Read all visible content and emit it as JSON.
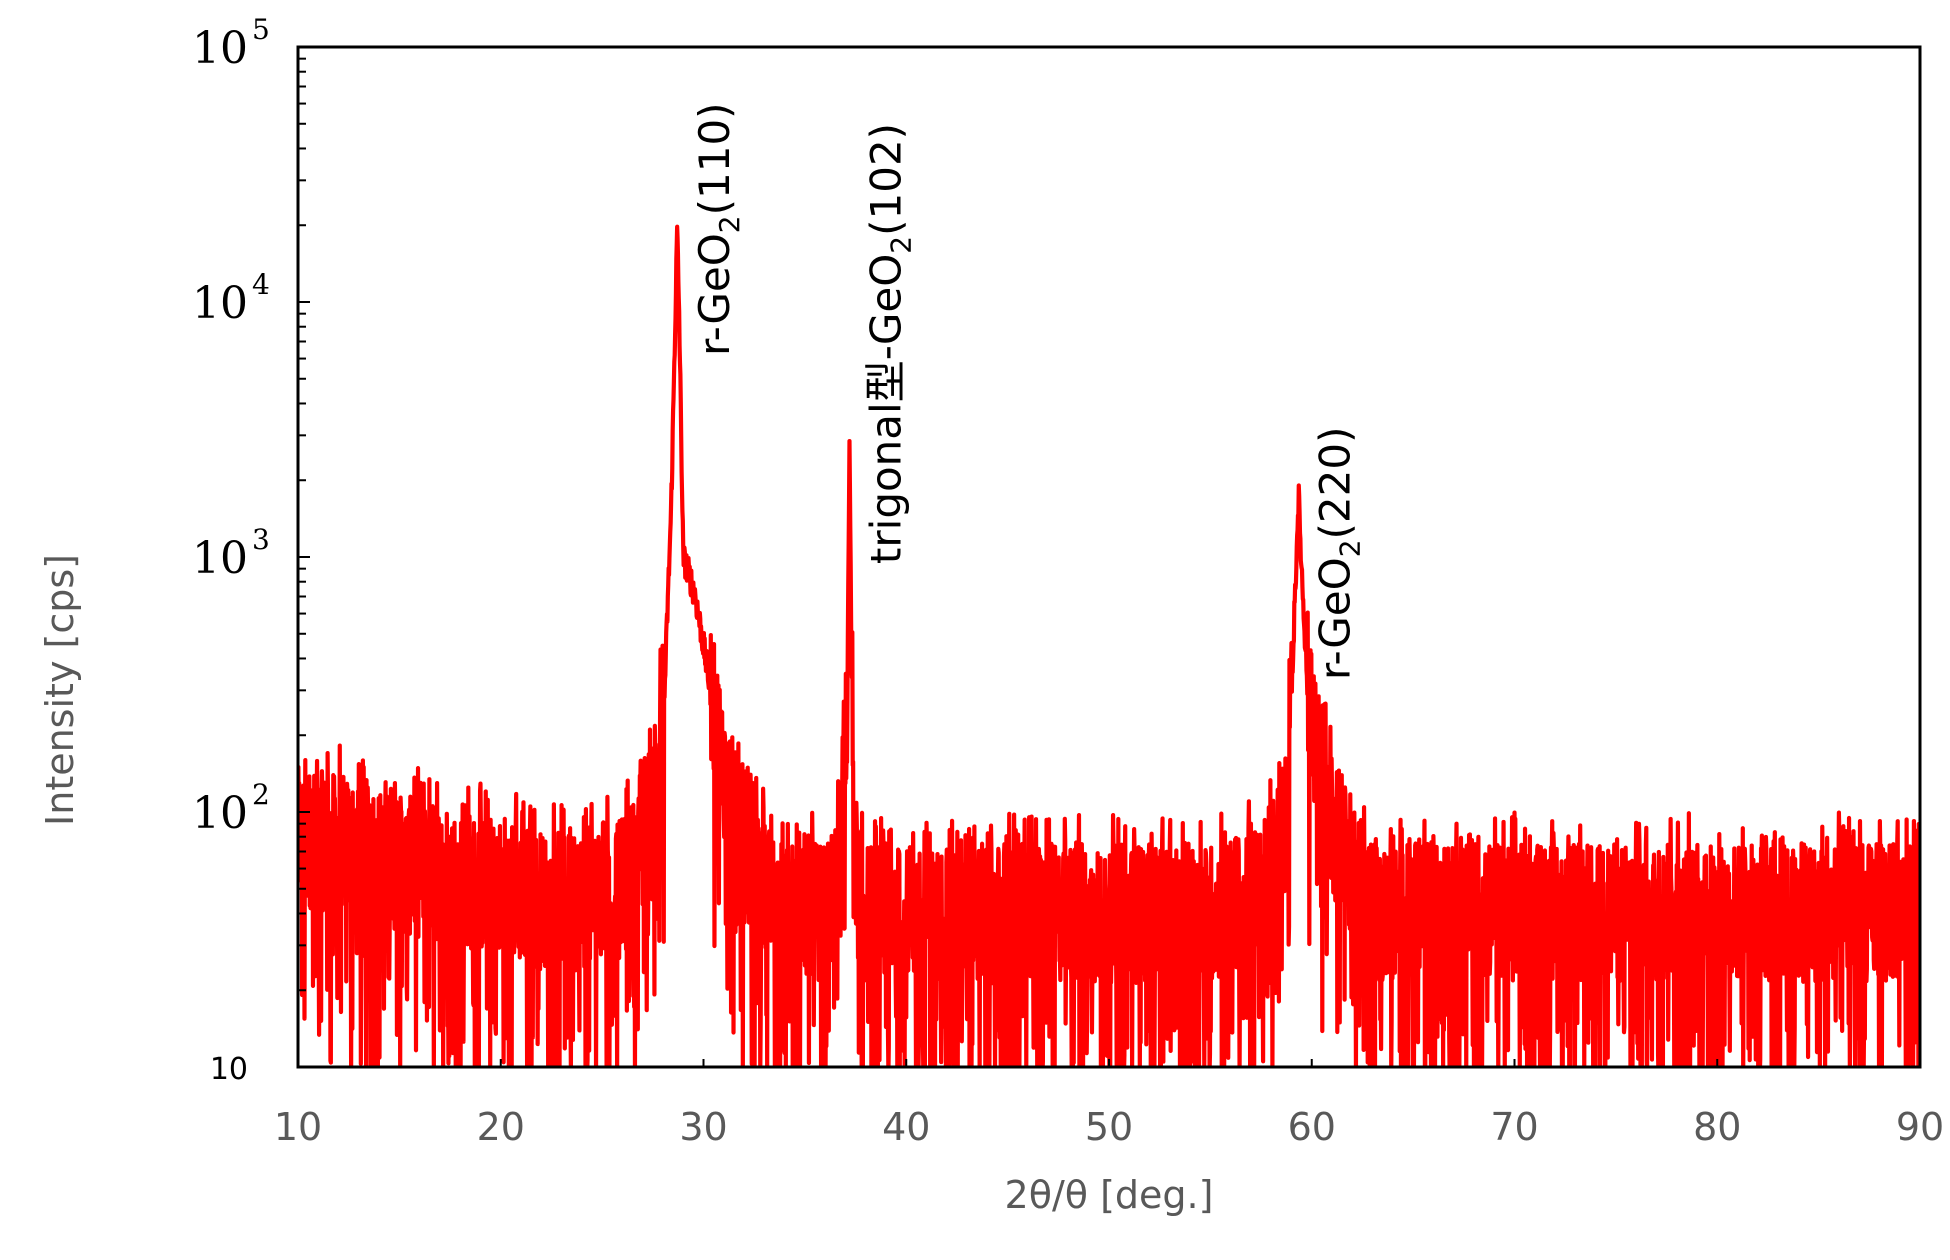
{
  "chart_data": {
    "type": "line",
    "title": "",
    "xlabel": "2θ/θ [deg.]",
    "ylabel": "Intensity [cps]",
    "xlim": [
      10,
      90
    ],
    "ylim": [
      10,
      100000
    ],
    "yscale": "log",
    "grid": false,
    "legend": "none",
    "line_color": "#ff0000",
    "x_ticks": [
      10,
      20,
      30,
      40,
      50,
      60,
      70,
      80,
      90
    ],
    "y_ticks": [
      {
        "value": 10,
        "label": "10",
        "exp": ""
      },
      {
        "value": 100,
        "label": "10",
        "exp": "2"
      },
      {
        "value": 1000,
        "label": "10",
        "exp": "3"
      },
      {
        "value": 10000,
        "label": "10",
        "exp": "4"
      },
      {
        "value": 100000,
        "label": "10",
        "exp": "5"
      }
    ],
    "series": [
      {
        "x": [
          10.0,
          12.0,
          14.0,
          16.0,
          18.0,
          20.0,
          22.0,
          24.0,
          26.0,
          27.0,
          27.5,
          28.0,
          28.4,
          28.6,
          28.7,
          28.8,
          29.0,
          29.3,
          29.6,
          30.0,
          30.5,
          31.0,
          31.5,
          32.0,
          33.0,
          34.0,
          35.0,
          36.0,
          36.8,
          37.1,
          37.2,
          37.3,
          37.4,
          37.6,
          38.0,
          40.0,
          45.0,
          50.0,
          55.0,
          57.0,
          58.0,
          58.8,
          59.2,
          59.35,
          59.5,
          59.8,
          60.3,
          61.0,
          62.0,
          63.0,
          65.0,
          70.0,
          75.0,
          80.0,
          85.0,
          90.0
        ],
        "y": [
          80,
          75,
          65,
          60,
          55,
          50,
          45,
          45,
          50,
          70,
          120,
          200,
          1500,
          8000,
          19000,
          9000,
          1000,
          850,
          700,
          450,
          250,
          150,
          100,
          70,
          50,
          40,
          40,
          40,
          60,
          300,
          2900,
          400,
          100,
          50,
          40,
          40,
          40,
          40,
          40,
          45,
          60,
          100,
          800,
          1750,
          900,
          300,
          150,
          90,
          60,
          40,
          40,
          40,
          40,
          40,
          40,
          40
        ]
      }
    ],
    "annotations": [
      {
        "x": 28.8,
        "y": 19000,
        "base": "r-GeO",
        "sub": "2",
        "rest": "(110)"
      },
      {
        "x": 37.25,
        "y": 2900,
        "base": "trigonal型-GeO",
        "sub": "2",
        "rest": "(102)"
      },
      {
        "x": 59.4,
        "y": 1750,
        "base": "r-GeO",
        "sub": "2",
        "rest": "(220)"
      }
    ]
  }
}
